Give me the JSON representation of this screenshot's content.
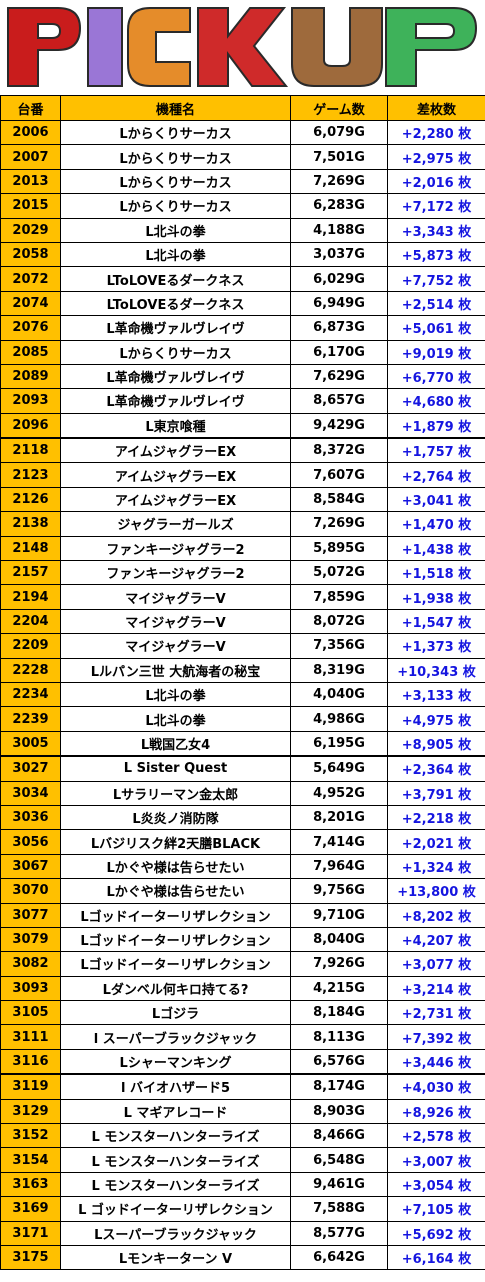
{
  "banner": {
    "title": "PICKUP",
    "colors": [
      "#d21e1e",
      "#9a76d6",
      "#e58c2a",
      "#cf2a2a",
      "#9e6a3c",
      "#b68555",
      "#3eb25a"
    ]
  },
  "table": {
    "headers": {
      "no": "台番",
      "name": "機種名",
      "games": "ゲーム数",
      "diff": "差枚数"
    },
    "header_color": "#ffc000",
    "diff_color": "#1515e0",
    "rows": [
      {
        "no": "2006",
        "name": "Lからくりサーカス",
        "games": "6,079G",
        "diff": "+2,280 枚"
      },
      {
        "no": "2007",
        "name": "Lからくりサーカス",
        "games": "7,501G",
        "diff": "+2,975 枚"
      },
      {
        "no": "2013",
        "name": "Lからくりサーカス",
        "games": "7,269G",
        "diff": "+2,016 枚"
      },
      {
        "no": "2015",
        "name": "Lからくりサーカス",
        "games": "6,283G",
        "diff": "+7,172 枚"
      },
      {
        "no": "2029",
        "name": "L北斗の拳",
        "games": "4,188G",
        "diff": "+3,343 枚"
      },
      {
        "no": "2058",
        "name": "L北斗の拳",
        "games": "3,037G",
        "diff": "+5,873 枚"
      },
      {
        "no": "2072",
        "name": "LToLOVEるダークネス",
        "games": "6,029G",
        "diff": "+7,752 枚"
      },
      {
        "no": "2074",
        "name": "LToLOVEるダークネス",
        "games": "6,949G",
        "diff": "+2,514 枚"
      },
      {
        "no": "2076",
        "name": "L革命機ヴァルヴレイヴ",
        "games": "6,873G",
        "diff": "+5,061 枚"
      },
      {
        "no": "2085",
        "name": "Lからくりサーカス",
        "games": "6,170G",
        "diff": "+9,019 枚"
      },
      {
        "no": "2089",
        "name": "L革命機ヴァルヴレイヴ",
        "games": "7,629G",
        "diff": "+6,770 枚"
      },
      {
        "no": "2093",
        "name": "L革命機ヴァルヴレイヴ",
        "games": "8,657G",
        "diff": "+4,680 枚"
      },
      {
        "no": "2096",
        "name": "L東京喰種",
        "games": "9,429G",
        "diff": "+1,879 枚"
      },
      {
        "no": "2118",
        "name": "アイムジャグラーEX",
        "games": "8,372G",
        "diff": "+1,757 枚",
        "group": true
      },
      {
        "no": "2123",
        "name": "アイムジャグラーEX",
        "games": "7,607G",
        "diff": "+2,764 枚"
      },
      {
        "no": "2126",
        "name": "アイムジャグラーEX",
        "games": "8,584G",
        "diff": "+3,041 枚"
      },
      {
        "no": "2138",
        "name": "ジャグラーガールズ",
        "games": "7,269G",
        "diff": "+1,470 枚"
      },
      {
        "no": "2148",
        "name": "ファンキージャグラー2",
        "games": "5,895G",
        "diff": "+1,438 枚"
      },
      {
        "no": "2157",
        "name": "ファンキージャグラー2",
        "games": "5,072G",
        "diff": "+1,518 枚"
      },
      {
        "no": "2194",
        "name": "マイジャグラーV",
        "games": "7,859G",
        "diff": "+1,938 枚"
      },
      {
        "no": "2204",
        "name": "マイジャグラーV",
        "games": "8,072G",
        "diff": "+1,547 枚"
      },
      {
        "no": "2209",
        "name": "マイジャグラーV",
        "games": "7,356G",
        "diff": "+1,373 枚"
      },
      {
        "no": "2228",
        "name": "Lルパン三世 大航海者の秘宝",
        "games": "8,319G",
        "diff": "+10,343 枚"
      },
      {
        "no": "2234",
        "name": "L北斗の拳",
        "games": "4,040G",
        "diff": "+3,133 枚"
      },
      {
        "no": "2239",
        "name": "L北斗の拳",
        "games": "4,986G",
        "diff": "+4,975 枚"
      },
      {
        "no": "3005",
        "name": "L戦国乙女4",
        "games": "6,195G",
        "diff": "+8,905 枚"
      },
      {
        "no": "3027",
        "name": "L Sister Quest",
        "games": "5,649G",
        "diff": "+2,364 枚",
        "group": true
      },
      {
        "no": "3034",
        "name": "Lサラリーマン金太郎",
        "games": "4,952G",
        "diff": "+3,791 枚"
      },
      {
        "no": "3036",
        "name": "L炎炎ノ消防隊",
        "games": "8,201G",
        "diff": "+2,218 枚"
      },
      {
        "no": "3056",
        "name": "Lバジリスク絆2天膳BLACK",
        "games": "7,414G",
        "diff": "+2,021 枚"
      },
      {
        "no": "3067",
        "name": "Lかぐや様は告らせたい",
        "games": "7,964G",
        "diff": "+1,324 枚"
      },
      {
        "no": "3070",
        "name": "Lかぐや様は告らせたい",
        "games": "9,756G",
        "diff": "+13,800 枚"
      },
      {
        "no": "3077",
        "name": "Lゴッドイーターリザレクション",
        "games": "9,710G",
        "diff": "+8,202 枚"
      },
      {
        "no": "3079",
        "name": "Lゴッドイーターリザレクション",
        "games": "8,040G",
        "diff": "+4,207 枚"
      },
      {
        "no": "3082",
        "name": "Lゴッドイーターリザレクション",
        "games": "7,926G",
        "diff": "+3,077 枚"
      },
      {
        "no": "3093",
        "name": "Lダンベル何キロ持てる?",
        "games": "4,215G",
        "diff": "+3,214 枚"
      },
      {
        "no": "3105",
        "name": "Lゴジラ",
        "games": "8,184G",
        "diff": "+2,731 枚"
      },
      {
        "no": "3111",
        "name": "l スーパーブラックジャック",
        "games": "8,113G",
        "diff": "+7,392 枚"
      },
      {
        "no": "3116",
        "name": "Lシャーマンキング",
        "games": "6,576G",
        "diff": "+3,446 枚"
      },
      {
        "no": "3119",
        "name": "l バイオハザード5",
        "games": "8,174G",
        "diff": "+4,030 枚",
        "group": true
      },
      {
        "no": "3129",
        "name": "L マギアレコード",
        "games": "8,903G",
        "diff": "+8,926 枚"
      },
      {
        "no": "3152",
        "name": "L モンスターハンターライズ",
        "games": "8,466G",
        "diff": "+2,578 枚"
      },
      {
        "no": "3154",
        "name": "L モンスターハンターライズ",
        "games": "6,548G",
        "diff": "+3,007 枚"
      },
      {
        "no": "3163",
        "name": "L モンスターハンターライズ",
        "games": "9,461G",
        "diff": "+3,054 枚"
      },
      {
        "no": "3169",
        "name": "L ゴッドイーターリザレクション",
        "games": "7,588G",
        "diff": "+7,105 枚"
      },
      {
        "no": "3171",
        "name": "Lスーパーブラックジャック",
        "games": "8,577G",
        "diff": "+5,692 枚"
      },
      {
        "no": "3175",
        "name": "Lモンキーターン V",
        "games": "6,642G",
        "diff": "+6,164 枚"
      }
    ]
  }
}
